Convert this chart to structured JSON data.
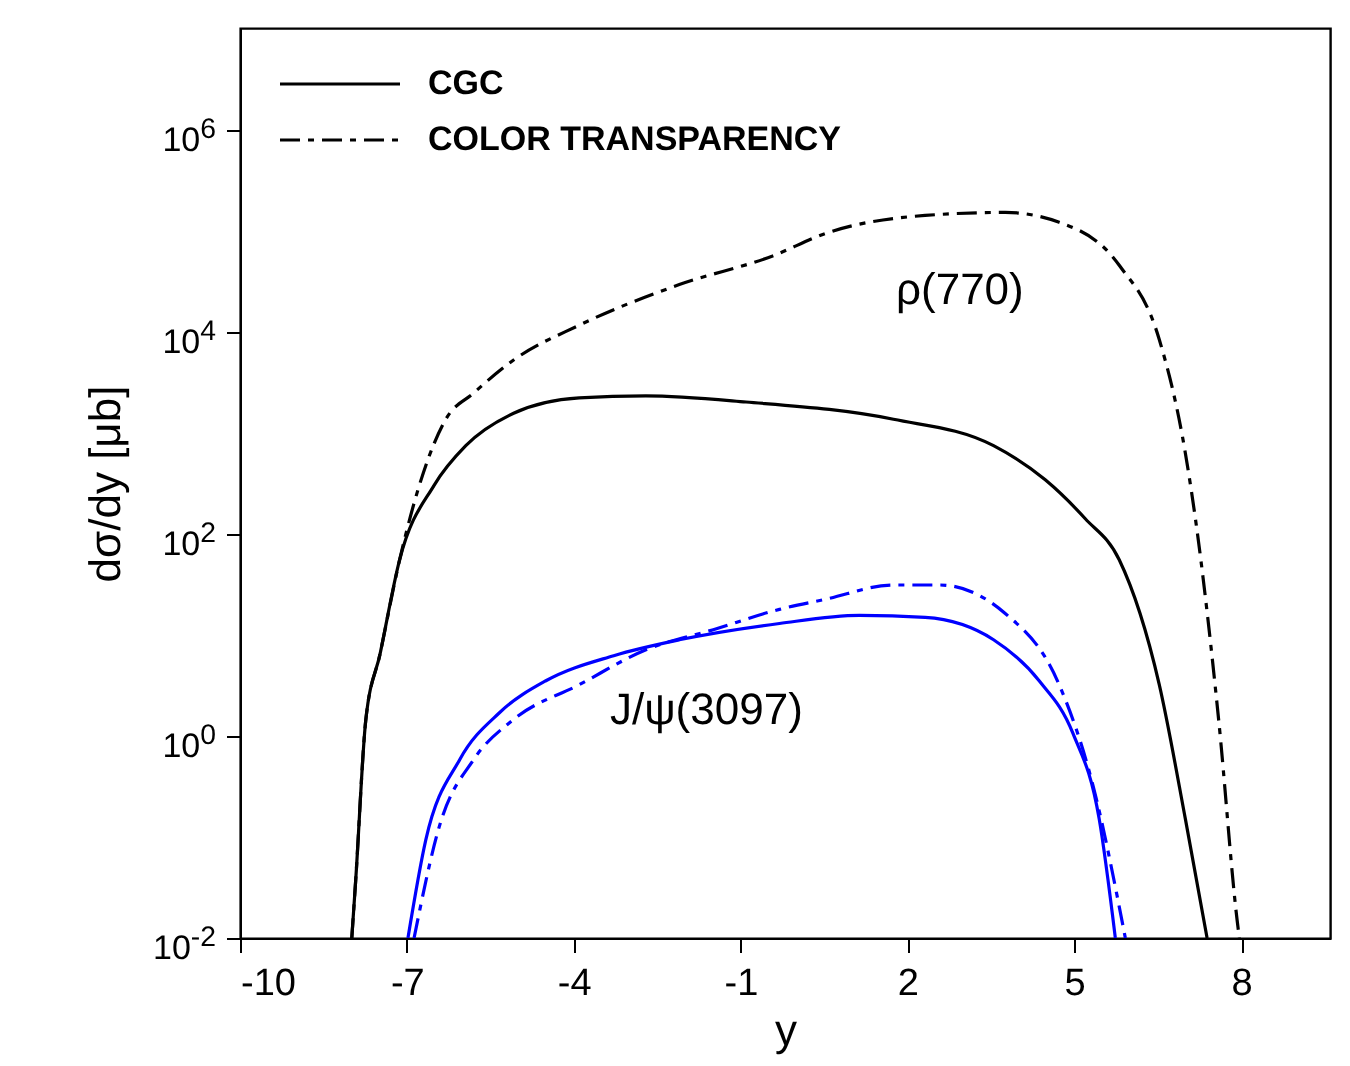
{
  "chart_data": {
    "type": "line",
    "xlabel": "y",
    "ylabel": "dσ/dy [μb]",
    "log": "y",
    "legend": "top left",
    "grid": false,
    "xlim": [
      -10,
      9.6
    ],
    "xticks": [
      -10,
      -7,
      -4,
      -1,
      2,
      5,
      8
    ],
    "ylim": [
      0.01,
      10000000
    ],
    "yticks": [
      {
        "value": 0.01,
        "label": "10$^{-2}$"
      },
      {
        "value": 1,
        "label": "10$^{0}$"
      },
      {
        "value": 100,
        "label": "10$^{2}$"
      },
      {
        "value": 10000,
        "label": "10$^{4}$"
      },
      {
        "value": 1000000,
        "label": "10$^{6}$"
      }
    ],
    "annotations": [
      "ρ(770)",
      "J/ψ(3097)"
    ],
    "series": [
      {
        "name": "CGC",
        "color": "#000000",
        "line_style": "solid",
        "x": [
          -7.99,
          -7.92,
          -7.74,
          -7.48,
          -7.13,
          -6.51,
          -5.94,
          -5.08,
          -3.9,
          -2.7,
          -0.9,
          1.75,
          3.55,
          4.48,
          5.2,
          5.81,
          6.53,
          7.0,
          7.39
        ],
        "values": [
          0.01,
          0.037,
          1.4,
          6.5,
          55,
          300,
          740,
          1550,
          2200,
          2300,
          2000,
          1350,
          740,
          340,
          140,
          55,
          3.2,
          0.15,
          0.01
        ]
      },
      {
        "name": "COLOR TRANSPARENCY",
        "color": "#000000",
        "line_style": "dashed",
        "x": [
          -7.99,
          -7.92,
          -7.74,
          -7.48,
          -7.13,
          -6.3,
          -5.8,
          -5.08,
          -3.9,
          -2.1,
          -0.41,
          0.53,
          2.32,
          3.76,
          4.73,
          5.81,
          6.53,
          7.0,
          7.18,
          7.6,
          7.93,
          7.97
        ],
        "values": [
          0.01,
          0.037,
          1.4,
          6.5,
          55,
          1350,
          2450,
          5200,
          11500,
          29000,
          56000,
          93000,
          140000,
          150000,
          120000,
          45000,
          8300,
          620,
          140,
          1.4,
          0.015,
          0.01
        ]
      },
      {
        "color": "#0000ff",
        "line_style": "solid",
        "x": [
          -6.98,
          -6.66,
          -6.05,
          -5.33,
          -4.5,
          -3.28,
          -2.1,
          -0.3,
          1.14,
          2.32,
          3.55,
          4.37,
          4.98,
          5.45,
          5.74
        ],
        "values": [
          0.01,
          0.093,
          0.58,
          1.7,
          3.5,
          6.2,
          8.9,
          12.9,
          15.5,
          14.8,
          8.9,
          3.5,
          1.05,
          0.15,
          0.01
        ]
      },
      {
        "color": "#0000ff",
        "line_style": "dashed",
        "x": [
          -6.87,
          -6.41,
          -5.8,
          -5.08,
          -3.9,
          -2.7,
          -1.49,
          -0.3,
          0.53,
          1.75,
          2.58,
          3.76,
          4.73,
          5.34,
          5.92
        ],
        "values": [
          0.01,
          0.13,
          0.58,
          1.45,
          3.2,
          7.1,
          11.2,
          17.8,
          22.4,
          31,
          31,
          16.2,
          3.2,
          0.32,
          0.01
        ]
      }
    ]
  }
}
